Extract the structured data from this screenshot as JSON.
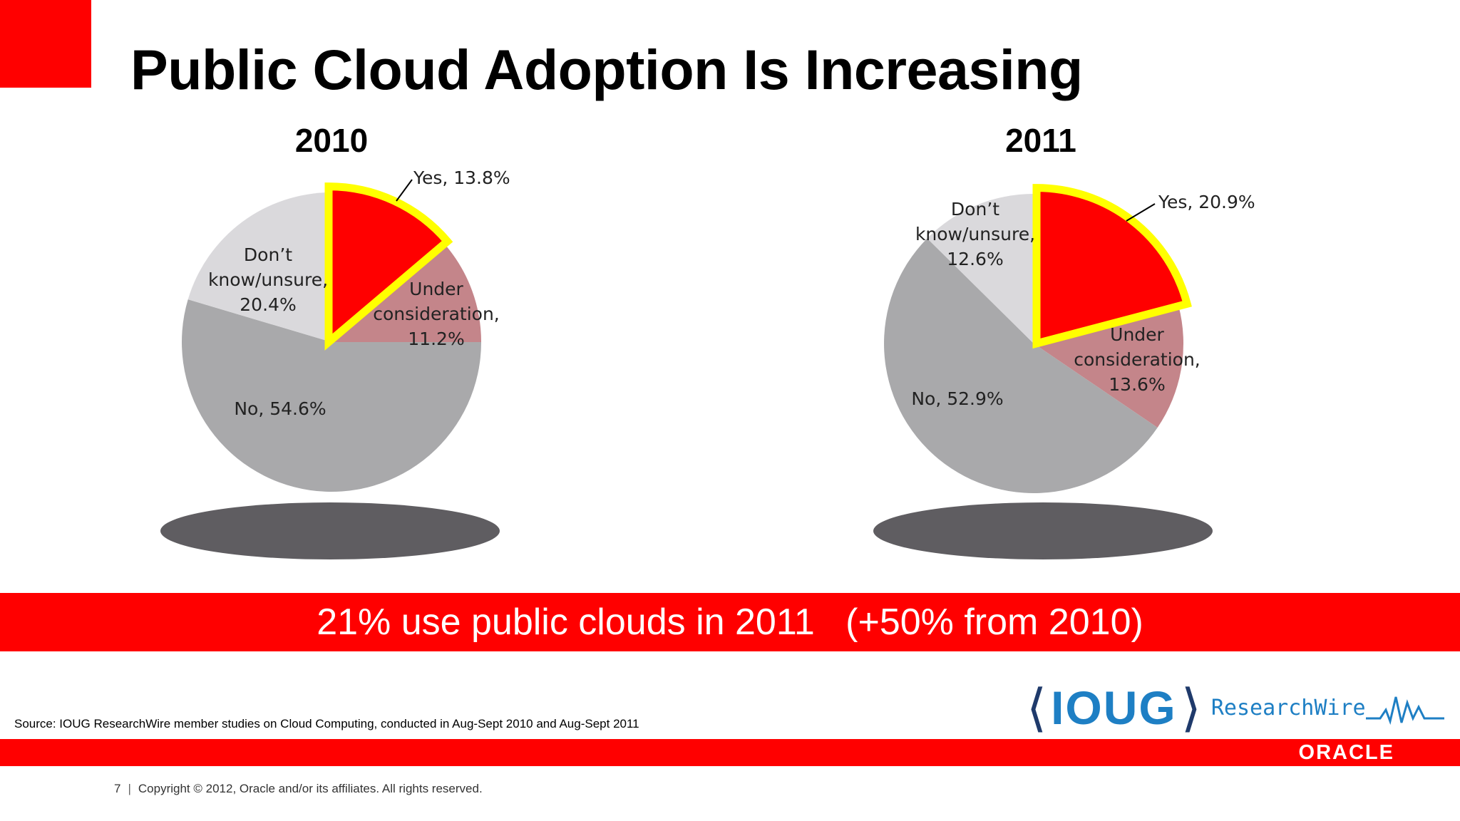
{
  "slide": {
    "title": "Public Cloud Adoption Is Increasing",
    "banner": "21% use public clouds in 2011   (+50% from 2010)",
    "source": "Source: IOUG ResearchWire member studies on Cloud Computing, conducted in Aug-Sept 2010 and Aug-Sept 2011",
    "logo_main": "IOUG",
    "logo_sub": "ResearchWire",
    "oracle_logo": "ORACLE",
    "page_number": "7",
    "copyright": "Copyright © 2012, Oracle and/or its affiliates. All rights reserved."
  },
  "colors": {
    "accent_red": "#ff0000",
    "highlight_yellow": "#ffff00",
    "no_gray": "#a9a9ab",
    "dont_know": "#dad9dc",
    "under_consideration": "#c4858a",
    "shadow": "#5f5d61"
  },
  "chart_data": [
    {
      "type": "pie",
      "title": "2010",
      "slices": [
        {
          "key": "yes",
          "label": "Yes, 13.8%",
          "value": 13.8
        },
        {
          "key": "under",
          "label": "Under consideration, 11.2%",
          "value": 11.2
        },
        {
          "key": "no",
          "label": "No, 54.6%",
          "value": 54.6
        },
        {
          "key": "dont",
          "label": "Don’t know/unsure, 20.4%",
          "value": 20.4
        }
      ]
    },
    {
      "type": "pie",
      "title": "2011",
      "slices": [
        {
          "key": "yes",
          "label": "Yes, 20.9%",
          "value": 20.9
        },
        {
          "key": "under",
          "label": "Under consideration, 13.6%",
          "value": 13.6
        },
        {
          "key": "no",
          "label": "No, 52.9%",
          "value": 52.9
        },
        {
          "key": "dont",
          "label": "Don’t know/unsure, 12.6%",
          "value": 12.6
        }
      ]
    }
  ]
}
